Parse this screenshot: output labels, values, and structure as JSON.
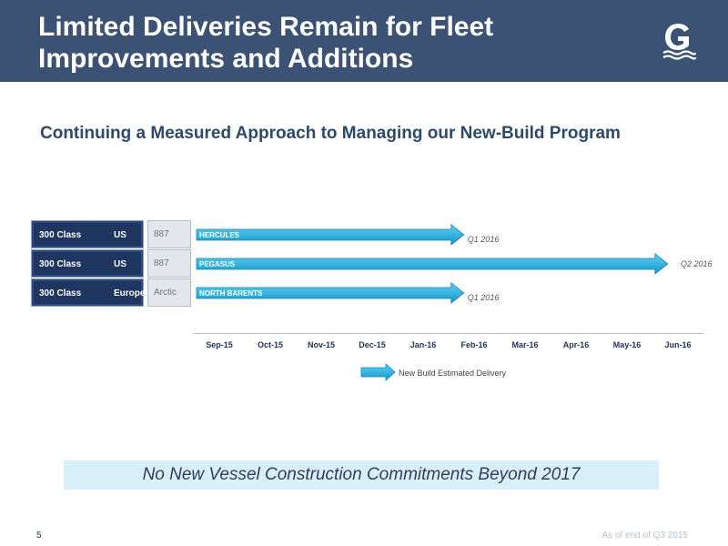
{
  "header": {
    "title_line1": "Limited Deliveries Remain for Fleet",
    "title_line2": "Improvements and Additions",
    "logo_icon": "company-logo-g-waves"
  },
  "subtitle": "Continuing a Measured Approach to Managing our New-Build Program",
  "vessels": [
    {
      "class": "300 Class",
      "region": "US",
      "type": "887",
      "name": "HERCULES",
      "delivery": "Q1 2016"
    },
    {
      "class": "300 Class",
      "region": "US",
      "type": "887",
      "name": "PEGASUS",
      "delivery": "Q2 2016"
    },
    {
      "class": "300 Class",
      "region": "Europe",
      "type": "Arctic",
      "name": "NORTH BARENTS",
      "delivery": "Q1 2016"
    }
  ],
  "chart_data": {
    "type": "bar",
    "orientation": "horizontal-timeline",
    "categories": [
      "HERCULES",
      "PEGASUS",
      "NORTH BARENTS"
    ],
    "x_ticks": [
      "Sep-15",
      "Oct-15",
      "Nov-15",
      "Dec-15",
      "Jan-16",
      "Feb-16",
      "Mar-16",
      "Apr-16",
      "May-16",
      "Jun-16"
    ],
    "series": [
      {
        "name": "New Build Estimated Delivery",
        "start": [
          "Sep-15",
          "Sep-15",
          "Sep-15"
        ],
        "end": [
          "Feb-16",
          "Jun-16",
          "Feb-16"
        ],
        "end_labels": [
          "Q1 2016",
          "Q2 2016",
          "Q1 2016"
        ]
      }
    ],
    "legend": {
      "label": "New Build Estimated Delivery",
      "placement": "bottom"
    },
    "bar_color": "#19b3e6"
  },
  "banner": "No New Vessel Construction Commitments Beyond 2017",
  "footer": {
    "page_number": "5",
    "note": "As of end of Q3 2015"
  },
  "colors": {
    "header_bg": "#3b5274",
    "dark_cell": "#1f3660",
    "bar": "#19b3e6",
    "banner_bg": "#d9f0fb"
  }
}
